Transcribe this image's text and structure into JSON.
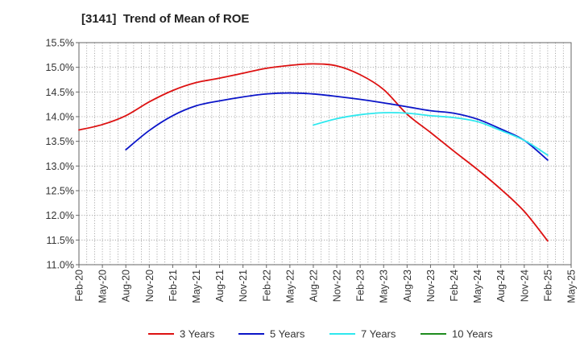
{
  "chart_data": {
    "type": "line",
    "title": "[3141]  Trend of Mean of ROE",
    "xlabel": "",
    "ylabel": "",
    "ylim": [
      11.0,
      15.5
    ],
    "y_ticks": [
      11.0,
      11.5,
      12.0,
      12.5,
      13.0,
      13.5,
      14.0,
      14.5,
      15.0,
      15.5
    ],
    "y_tick_suffix": "%",
    "x_tick_labels": [
      "Feb-20",
      "May-20",
      "Aug-20",
      "Nov-20",
      "Feb-21",
      "May-21",
      "Aug-21",
      "Nov-21",
      "Feb-22",
      "May-22",
      "Aug-22",
      "Nov-22",
      "Feb-23",
      "May-23",
      "Aug-23",
      "Nov-23",
      "Feb-24",
      "May-24",
      "Aug-24",
      "Nov-24",
      "Feb-25",
      "May-25"
    ],
    "grid": true,
    "legend_position": "bottom",
    "series": [
      {
        "name": "3 Years",
        "color": "#dd1111",
        "x": [
          "Feb-20",
          "May-20",
          "Aug-20",
          "Nov-20",
          "Feb-21",
          "May-21",
          "Aug-21",
          "Nov-21",
          "Feb-22",
          "May-22",
          "Aug-22",
          "Nov-22",
          "Feb-23",
          "May-23",
          "Aug-23",
          "Nov-23",
          "Feb-24",
          "May-24",
          "Aug-24",
          "Nov-24",
          "Feb-25"
        ],
        "values": [
          13.73,
          13.84,
          14.02,
          14.3,
          14.53,
          14.69,
          14.78,
          14.88,
          14.98,
          15.04,
          15.07,
          15.03,
          14.85,
          14.55,
          14.05,
          13.68,
          13.3,
          12.93,
          12.53,
          12.08,
          11.48
        ]
      },
      {
        "name": "5 Years",
        "color": "#0a14c8",
        "x": [
          "Aug-20",
          "Nov-20",
          "Feb-21",
          "May-21",
          "Aug-21",
          "Nov-21",
          "Feb-22",
          "May-22",
          "Aug-22",
          "Nov-22",
          "Feb-23",
          "May-23",
          "Aug-23",
          "Nov-23",
          "Feb-24",
          "May-24",
          "Aug-24",
          "Nov-24",
          "Feb-25"
        ],
        "values": [
          13.33,
          13.72,
          14.02,
          14.22,
          14.32,
          14.4,
          14.46,
          14.48,
          14.46,
          14.41,
          14.35,
          14.28,
          14.2,
          14.12,
          14.07,
          13.95,
          13.75,
          13.52,
          13.12
        ]
      },
      {
        "name": "7 Years",
        "color": "#2ee8ee",
        "x": [
          "Aug-22",
          "Nov-22",
          "Feb-23",
          "May-23",
          "Aug-23",
          "Nov-23",
          "Feb-24",
          "May-24",
          "Aug-24",
          "Nov-24",
          "Feb-25"
        ],
        "values": [
          13.83,
          13.96,
          14.04,
          14.08,
          14.07,
          14.02,
          13.98,
          13.9,
          13.72,
          13.52,
          13.22
        ]
      },
      {
        "name": "10 Years",
        "color": "#1e8c1e",
        "x": [],
        "values": []
      }
    ]
  }
}
